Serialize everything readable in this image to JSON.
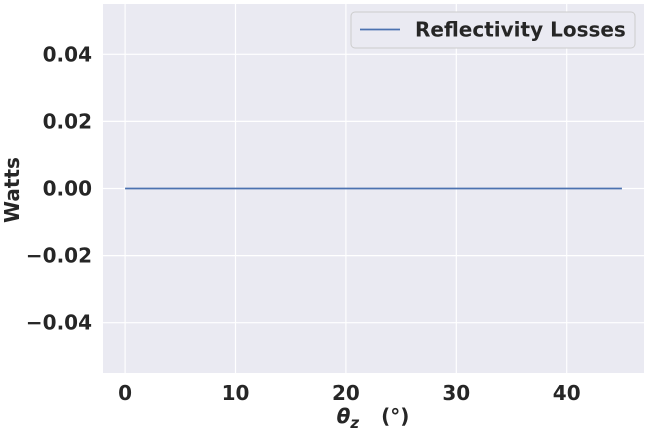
{
  "chart_data": {
    "type": "line",
    "xlabel_symbol": "θ",
    "xlabel_subscript": "z",
    "xlabel_unit": "(°)",
    "ylabel": "Watts",
    "xlim": [
      -2.0,
      47.0
    ],
    "ylim": [
      -0.055,
      0.055
    ],
    "x_ticks": [
      0,
      10,
      20,
      30,
      40
    ],
    "y_ticks": [
      -0.04,
      -0.02,
      0.0,
      0.02,
      0.04
    ],
    "x_tick_labels": [
      "0",
      "10",
      "20",
      "30",
      "40"
    ],
    "y_tick_labels": [
      "−0.04",
      "−0.02",
      "0.00",
      "0.02",
      "0.04"
    ],
    "grid": true,
    "legend_position": "top-right",
    "series": [
      {
        "name": "Reflectivity Losses",
        "color": "#4c72b0",
        "x": [
          0,
          5,
          10,
          15,
          20,
          25,
          30,
          35,
          40,
          45
        ],
        "y": [
          0,
          0,
          0,
          0,
          0,
          0,
          0,
          0,
          0,
          0
        ]
      }
    ]
  },
  "colors": {
    "plot_background": "#eaeaf2",
    "grid": "#ffffff",
    "text": "#262626"
  }
}
